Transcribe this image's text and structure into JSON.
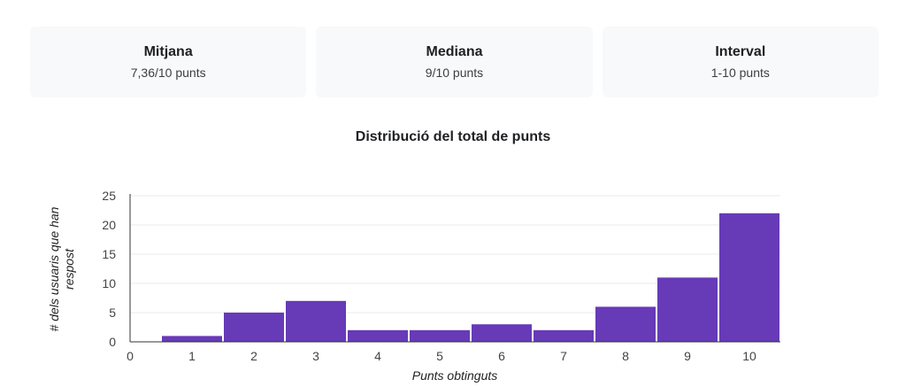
{
  "summary": [
    {
      "label": "Mitjana",
      "value": "7,36/10 punts"
    },
    {
      "label": "Mediana",
      "value": "9/10 punts"
    },
    {
      "label": "Interval",
      "value": "1-10 punts"
    }
  ],
  "chart_data": {
    "type": "bar",
    "title": "Distribució del total de punts",
    "xlabel": "Punts obtinguts",
    "ylabel": "# dels usuaris que han respost",
    "categories": [
      "1",
      "2",
      "3",
      "4",
      "5",
      "6",
      "7",
      "8",
      "9",
      "10"
    ],
    "values": [
      1,
      5,
      7,
      2,
      2,
      3,
      2,
      6,
      11,
      22
    ],
    "x_ticks": [
      "0",
      "1",
      "2",
      "3",
      "4",
      "5",
      "6",
      "7",
      "8",
      "9",
      "10"
    ],
    "y_ticks": [
      0,
      5,
      10,
      15,
      20,
      25
    ],
    "ylim": [
      0,
      25
    ],
    "xlim": [
      0,
      10.5
    ],
    "bar_color": "#673ab7",
    "grid": true
  }
}
